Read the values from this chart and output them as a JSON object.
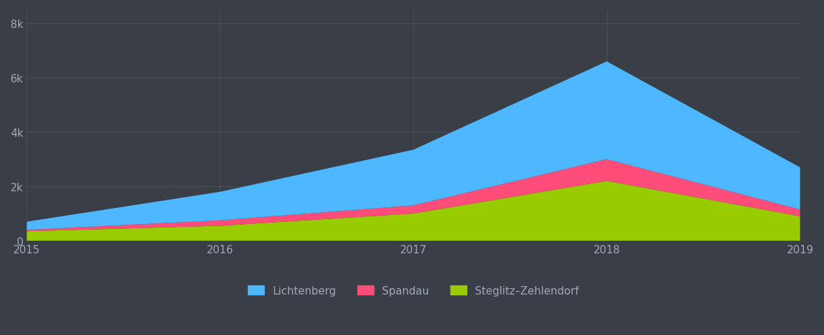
{
  "x": [
    2015,
    2016,
    2017,
    2018,
    2019
  ],
  "steglitz_zehlendorf": [
    350,
    550,
    1000,
    2200,
    900
  ],
  "spandau": [
    50,
    200,
    300,
    800,
    250
  ],
  "lichtenberg": [
    300,
    1050,
    2050,
    3600,
    1550
  ],
  "colors": {
    "lichtenberg": "#4db8ff",
    "spandau": "#ff4d7a",
    "steglitz_zehlendorf": "#99cc00"
  },
  "background_color": "#3a3f47",
  "grid_color": "#555a62",
  "text_color": "#a0aab4",
  "xlabel_ticks": [
    2015,
    2016,
    2017,
    2018,
    2019
  ],
  "ylabel_ticks": [
    0,
    2000,
    4000,
    6000,
    8000
  ],
  "ylabel_labels": [
    "0",
    "2k",
    "4k",
    "6k",
    "8k"
  ],
  "ylim": [
    0,
    8500
  ],
  "xlim": [
    2015,
    2019
  ],
  "legend_labels": [
    "Lichtenberg",
    "Spandau",
    "Steglitz–Zehlendorf"
  ],
  "tick_fontsize": 11,
  "legend_fontsize": 11
}
